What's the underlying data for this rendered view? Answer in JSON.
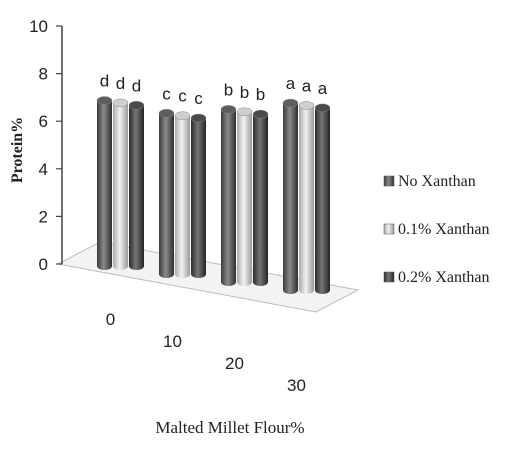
{
  "chart_data": {
    "type": "bar",
    "title": "",
    "xlabel": "Malted Millet Flour%",
    "ylabel": "Protein%",
    "ylim": [
      0,
      10
    ],
    "yticks": [
      "0",
      "2",
      "4",
      "6",
      "8",
      "10"
    ],
    "categories": [
      "0",
      "10",
      "20",
      "30"
    ],
    "series": [
      {
        "name": "No Xanthan",
        "values": [
          6.7,
          6.5,
          7.0,
          7.6
        ],
        "letters": [
          "d",
          "c",
          "b",
          "a"
        ],
        "color": "#5e5e5e"
      },
      {
        "name": "0.1% Xanthan",
        "values": [
          6.6,
          6.4,
          6.9,
          7.5
        ],
        "letters": [
          "d",
          "c",
          "b",
          "a"
        ],
        "color": "#cfcfcf"
      },
      {
        "name": "0.2% Xanthan",
        "values": [
          6.5,
          6.3,
          6.8,
          7.4
        ],
        "letters": [
          "d",
          "c",
          "b",
          "a"
        ],
        "color": "#4a4a4a"
      }
    ],
    "legend": "right",
    "grid": false
  }
}
